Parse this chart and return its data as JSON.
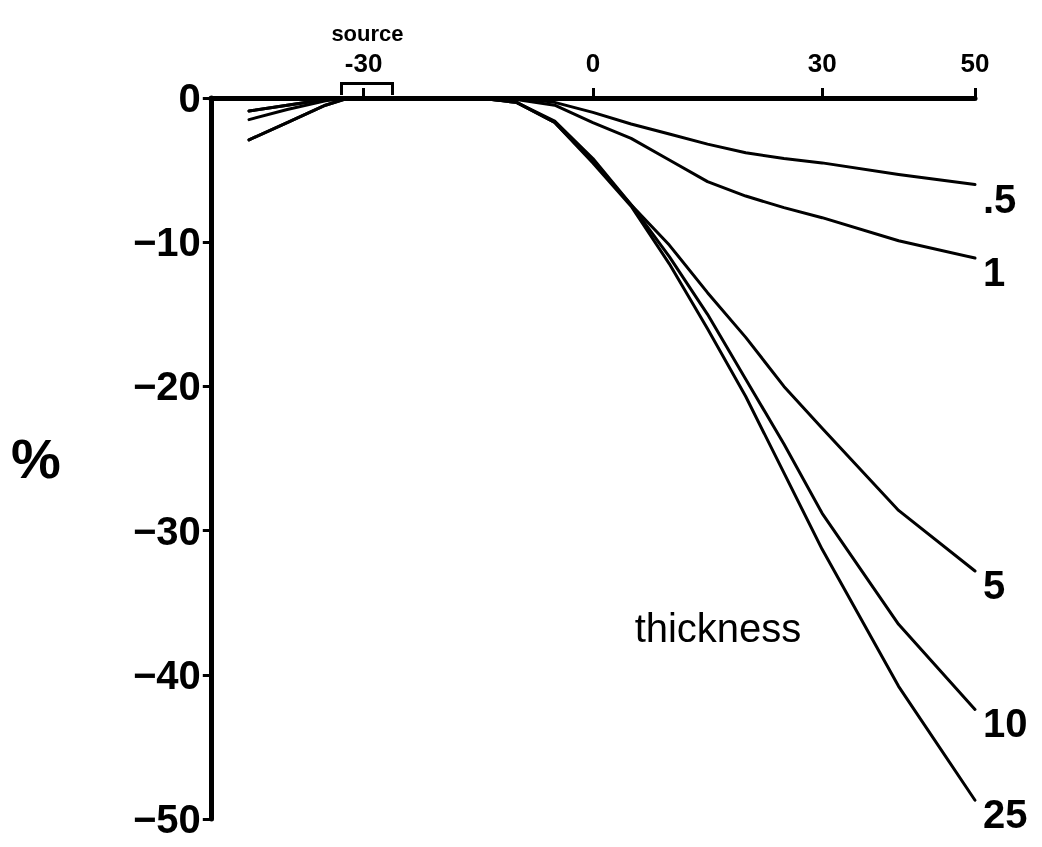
{
  "chart_data": {
    "type": "line",
    "ylabel": "%",
    "x": [
      -45,
      -40,
      -35,
      -32,
      -15,
      -10,
      -5,
      0,
      5,
      10,
      15,
      20,
      25,
      30,
      40,
      50
    ],
    "series": [
      {
        "name": ".5",
        "color": "#000000",
        "values": [
          -0.9,
          -0.5,
          -0.1,
          0,
          0,
          0,
          -0.3,
          -1.0,
          -1.8,
          -2.5,
          -3.2,
          -3.8,
          -4.2,
          -4.5,
          -5.3,
          -6.0
        ]
      },
      {
        "name": "1",
        "color": "#000000",
        "values": [
          -0.9,
          -0.5,
          -0.1,
          0,
          0,
          -0.1,
          -0.5,
          -1.7,
          -2.8,
          -4.3,
          -5.8,
          -6.8,
          -7.6,
          -8.3,
          -9.9,
          -11.1
        ]
      },
      {
        "name": "5",
        "color": "#000000",
        "values": [
          -1.5,
          -0.8,
          -0.2,
          0,
          0,
          -0.3,
          -1.6,
          -4.2,
          -7.4,
          -10.2,
          -13.5,
          -16.6,
          -20,
          -22.9,
          -28.6,
          -32.8
        ]
      },
      {
        "name": "10",
        "color": "#000000",
        "values": [
          -2.9,
          -1.7,
          -0.5,
          0,
          0,
          -0.3,
          -1.7,
          -4.4,
          -7.4,
          -11,
          -15,
          -19.5,
          -24,
          -28.8,
          -36.5,
          -42.4
        ]
      },
      {
        "name": "25",
        "color": "#000000",
        "values": [
          -2.9,
          -1.7,
          -0.5,
          0,
          0,
          -0.3,
          -1.7,
          -4.5,
          -7.5,
          -11.5,
          -16,
          -20.7,
          -26,
          -31.3,
          -40.8,
          -48.7
        ]
      }
    ],
    "xlim": [
      -50,
      50
    ],
    "xticks": [
      -30,
      0,
      30,
      50
    ],
    "ylim": [
      -50,
      0
    ],
    "yticks": [
      -50,
      -40,
      -30,
      -20,
      -10,
      0
    ],
    "annotations": [
      {
        "text": "source",
        "x": -29.5,
        "y": 0
      },
      "thickness"
    ],
    "grid": false,
    "marker": "none",
    "line_style": "solid"
  }
}
